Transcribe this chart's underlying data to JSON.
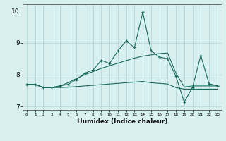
{
  "xlabel": "Humidex (Indice chaleur)",
  "x": [
    0,
    1,
    2,
    3,
    4,
    5,
    6,
    7,
    8,
    9,
    10,
    11,
    12,
    13,
    14,
    15,
    16,
    17,
    18,
    19,
    20,
    21,
    22,
    23
  ],
  "line1": [
    7.7,
    7.7,
    7.6,
    7.6,
    7.65,
    7.7,
    7.85,
    8.05,
    8.15,
    8.45,
    8.35,
    8.75,
    9.05,
    8.85,
    9.95,
    8.75,
    8.55,
    8.5,
    7.95,
    7.15,
    7.6,
    8.6,
    7.72,
    7.65
  ],
  "line2": [
    7.7,
    7.7,
    7.6,
    7.6,
    7.65,
    7.75,
    7.88,
    8.0,
    8.1,
    8.2,
    8.28,
    8.36,
    8.44,
    8.52,
    8.58,
    8.62,
    8.66,
    8.68,
    8.05,
    7.62,
    7.65,
    7.65,
    7.65,
    7.65
  ],
  "line3": [
    7.7,
    7.7,
    7.6,
    7.6,
    7.6,
    7.61,
    7.63,
    7.65,
    7.67,
    7.69,
    7.71,
    7.73,
    7.75,
    7.77,
    7.79,
    7.75,
    7.73,
    7.71,
    7.6,
    7.55,
    7.55,
    7.55,
    7.55,
    7.55
  ],
  "color": "#1a6b5a",
  "bg_color": "#d9f0f0",
  "grid_color": "#b8d8d8",
  "ylim": [
    6.9,
    10.2
  ],
  "xlim": [
    -0.5,
    23.5
  ],
  "yticks": [
    7,
    8,
    9,
    10
  ],
  "xticks": [
    0,
    1,
    2,
    3,
    4,
    5,
    6,
    7,
    8,
    9,
    10,
    11,
    12,
    13,
    14,
    15,
    16,
    17,
    18,
    19,
    20,
    21,
    22,
    23
  ]
}
